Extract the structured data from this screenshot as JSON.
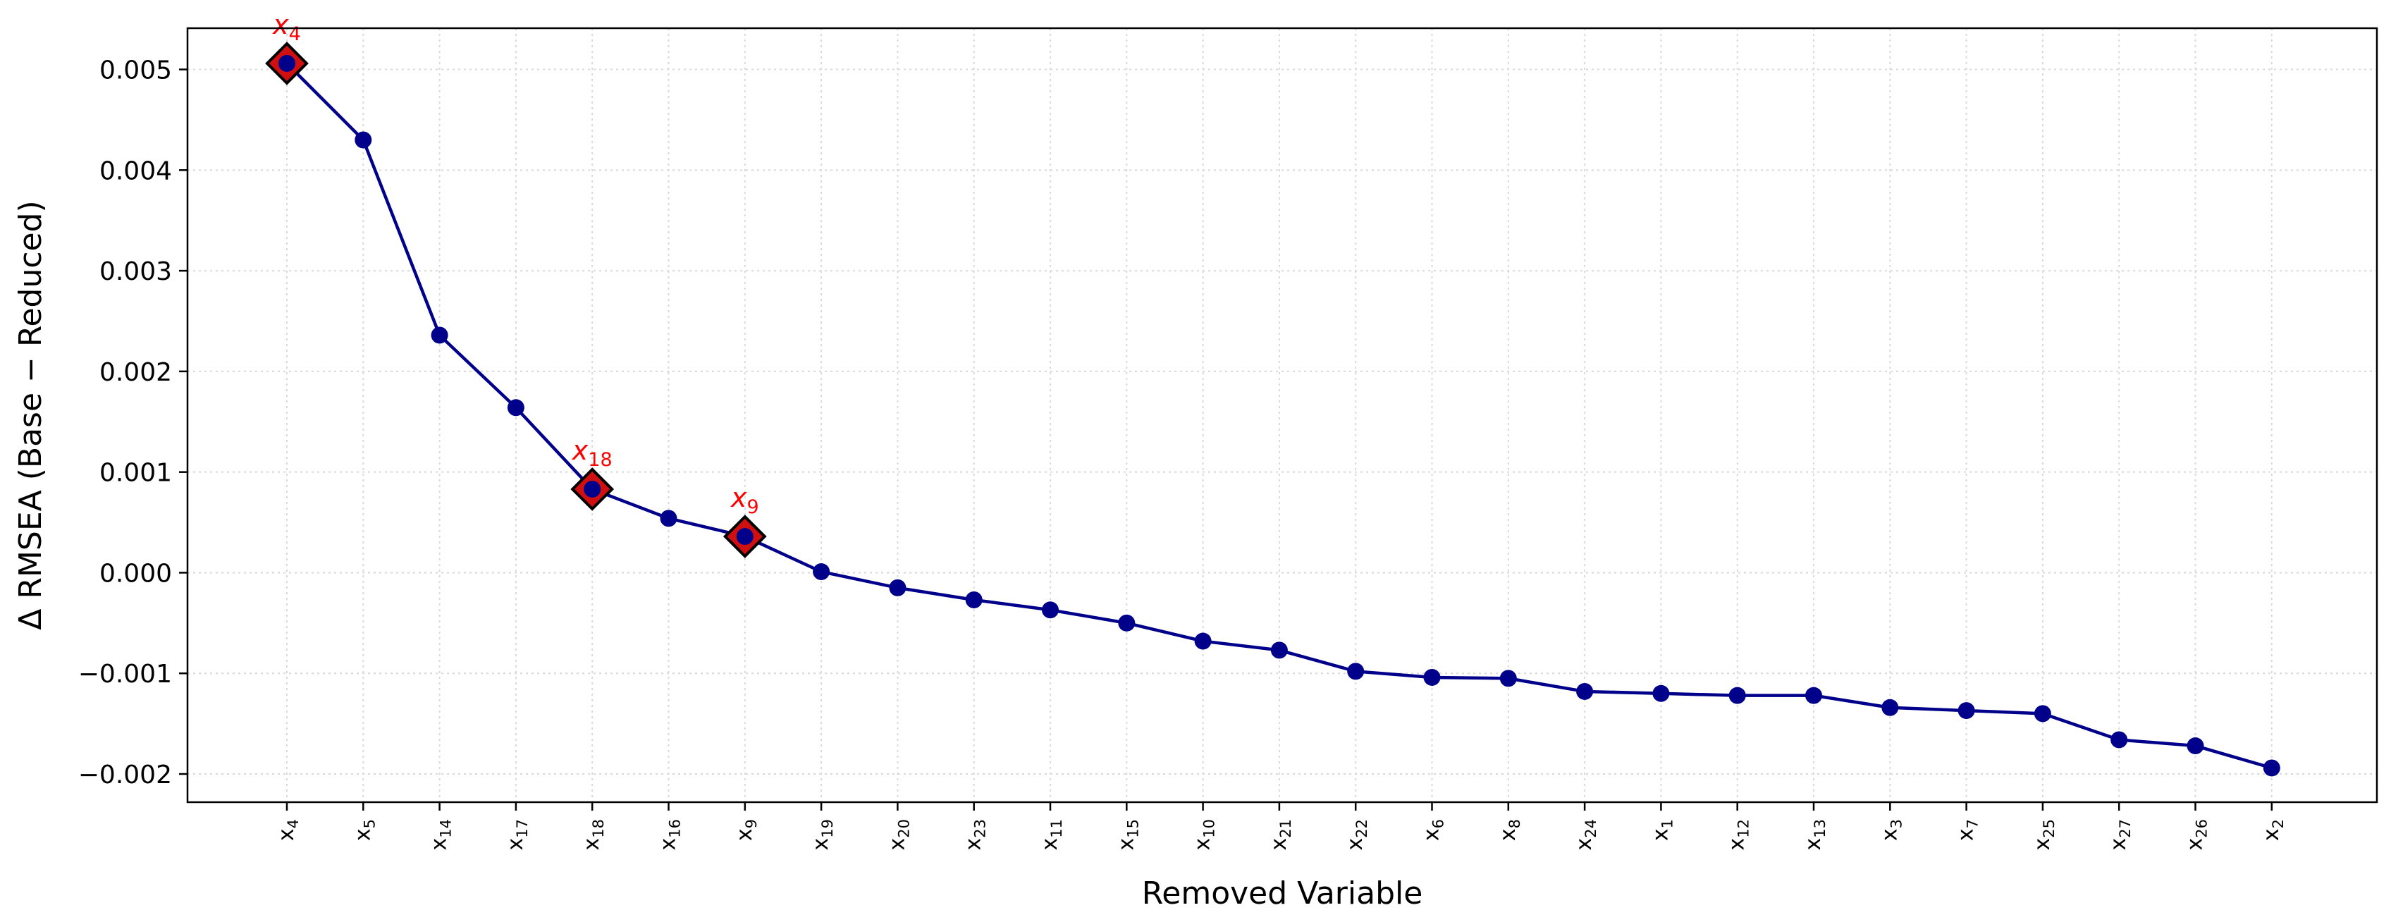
{
  "chart_data": {
    "type": "line",
    "xlabel": "Removed Variable",
    "ylabel": "Δ RMSEA (Base − Reduced)",
    "ylim": [
      -0.00228,
      0.00541
    ],
    "y_ticks": [
      0.005,
      0.004,
      0.003,
      0.002,
      0.001,
      0.0,
      -0.001,
      -0.002
    ],
    "y_tick_labels": [
      "0.005",
      "0.004",
      "0.003",
      "0.002",
      "0.001",
      "0.000",
      "−0.001",
      "−0.002"
    ],
    "grid": true,
    "categories": [
      {
        "base": "x",
        "sub": "4"
      },
      {
        "base": "x",
        "sub": "5"
      },
      {
        "base": "x",
        "sub": "14"
      },
      {
        "base": "x",
        "sub": "17"
      },
      {
        "base": "x",
        "sub": "18"
      },
      {
        "base": "x",
        "sub": "16"
      },
      {
        "base": "x",
        "sub": "9"
      },
      {
        "base": "x",
        "sub": "19"
      },
      {
        "base": "x",
        "sub": "20"
      },
      {
        "base": "x",
        "sub": "23"
      },
      {
        "base": "x",
        "sub": "11"
      },
      {
        "base": "x",
        "sub": "15"
      },
      {
        "base": "x",
        "sub": "10"
      },
      {
        "base": "x",
        "sub": "21"
      },
      {
        "base": "x",
        "sub": "22"
      },
      {
        "base": "x",
        "sub": "6"
      },
      {
        "base": "x",
        "sub": "8"
      },
      {
        "base": "x",
        "sub": "24"
      },
      {
        "base": "x",
        "sub": "1"
      },
      {
        "base": "x",
        "sub": "12"
      },
      {
        "base": "x",
        "sub": "13"
      },
      {
        "base": "x",
        "sub": "3"
      },
      {
        "base": "x",
        "sub": "7"
      },
      {
        "base": "x",
        "sub": "25"
      },
      {
        "base": "x",
        "sub": "27"
      },
      {
        "base": "x",
        "sub": "26"
      },
      {
        "base": "x",
        "sub": "2"
      }
    ],
    "values": [
      0.00506,
      0.0043,
      0.00236,
      0.00164,
      0.00083,
      0.00054,
      0.00036,
      1e-05,
      -0.00015,
      -0.00027,
      -0.00037,
      -0.0005,
      -0.00068,
      -0.00077,
      -0.00098,
      -0.00104,
      -0.00105,
      -0.00118,
      -0.0012,
      -0.00122,
      -0.00122,
      -0.00134,
      -0.00137,
      -0.0014,
      -0.00166,
      -0.00172,
      -0.00194
    ],
    "highlighted_indices": [
      0,
      4,
      6
    ],
    "colors": {
      "line": "#00008b",
      "marker": "#00008b",
      "highlight_fill": "#d01010",
      "highlight_edge": "#000000",
      "highlight_label": "#ff0000",
      "grid": "#d9d9d9"
    }
  }
}
